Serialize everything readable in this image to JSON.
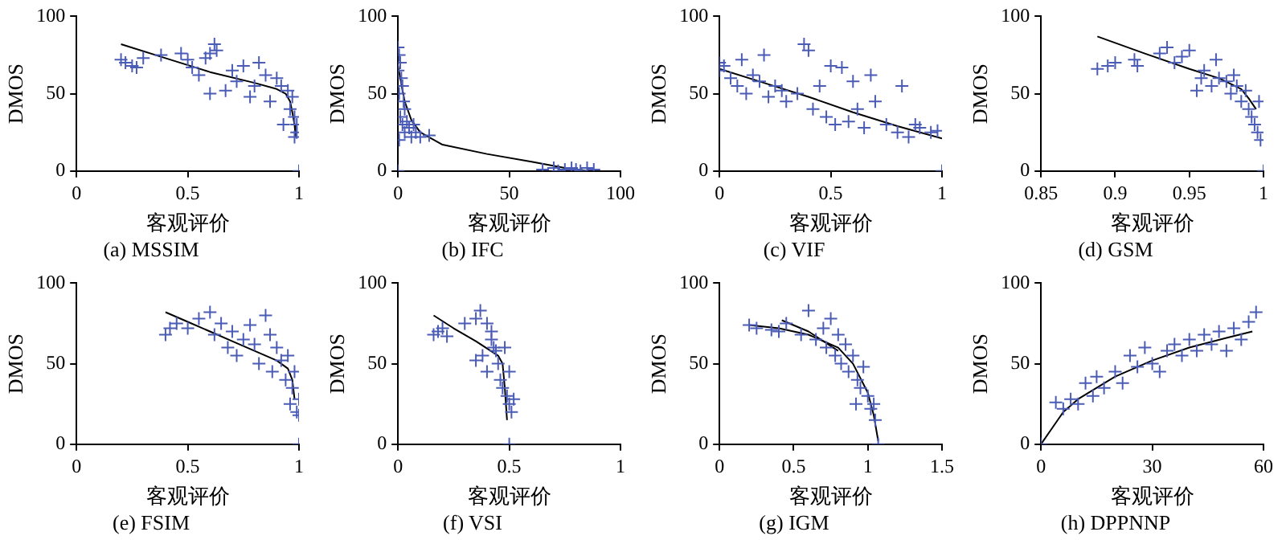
{
  "chart_data": [
    {
      "type": "scatter",
      "title": "(a) MSSIM",
      "xlabel": "客观评价",
      "ylabel": "DMOS",
      "xlim": [
        0,
        1
      ],
      "xticks": [
        0,
        0.5,
        1
      ],
      "ylim": [
        0,
        100
      ],
      "yticks": [
        0,
        50,
        100
      ],
      "marker": "cross",
      "series": [
        {
          "color": "#4a5cb5",
          "x": [
            0.2,
            0.22,
            0.25,
            0.27,
            0.3,
            0.38,
            0.47,
            0.5,
            0.52,
            0.55,
            0.58,
            0.6,
            0.62,
            0.63,
            0.6,
            0.67,
            0.7,
            0.72,
            0.75,
            0.78,
            0.8,
            0.82,
            0.85,
            0.87,
            0.9,
            0.92,
            0.93,
            0.95,
            0.96,
            0.97,
            0.98,
            0.99,
            0.99,
            0.98,
            1
          ],
          "values": [
            72,
            70,
            68,
            67,
            73,
            75,
            76,
            72,
            67,
            62,
            73,
            76,
            82,
            78,
            50,
            52,
            65,
            58,
            68,
            48,
            55,
            70,
            62,
            45,
            60,
            55,
            30,
            52,
            40,
            48,
            35,
            25,
            30,
            22,
            0
          ]
        },
        {
          "type": "line",
          "color": "#000000",
          "marker": "none",
          "x": [
            0.2,
            0.4,
            0.6,
            0.8,
            0.9,
            0.94,
            0.96,
            0.97,
            0.98,
            0.985
          ],
          "values": [
            82,
            73,
            64,
            57,
            53,
            50,
            45,
            38,
            30,
            22
          ]
        }
      ]
    },
    {
      "type": "scatter",
      "title": "(b) IFC",
      "xlabel": "客观评价",
      "ylabel": "DMOS",
      "xlim": [
        0,
        100
      ],
      "xticks": [
        0,
        50,
        100
      ],
      "ylim": [
        0,
        100
      ],
      "yticks": [
        0,
        50,
        100
      ],
      "marker": "cross",
      "series": [
        {
          "color": "#4a5cb5",
          "x": [
            0,
            0.5,
            1,
            0,
            1.5,
            2,
            0.5,
            2.5,
            3,
            1,
            4,
            5,
            3,
            6,
            0.5,
            8,
            10,
            14,
            2,
            7,
            0,
            65,
            70,
            75,
            78,
            80,
            85,
            88,
            72,
            82
          ],
          "values": [
            80,
            75,
            70,
            65,
            60,
            55,
            50,
            45,
            40,
            35,
            32,
            28,
            25,
            22,
            20,
            25,
            22,
            23,
            30,
            30,
            0,
            1,
            2,
            1,
            2,
            1,
            2,
            1,
            0,
            0
          ]
        },
        {
          "type": "line",
          "color": "#000000",
          "marker": "none",
          "x": [
            0,
            1,
            3,
            6,
            10,
            20,
            40,
            60,
            75,
            85
          ],
          "values": [
            68,
            60,
            45,
            33,
            25,
            17,
            11,
            6,
            2,
            0
          ]
        }
      ]
    },
    {
      "type": "scatter",
      "title": "(c) VIF",
      "xlabel": "客观评价",
      "ylabel": "DMOS",
      "xlim": [
        0,
        1
      ],
      "xticks": [
        0,
        0.5,
        1
      ],
      "ylim": [
        0,
        100
      ],
      "yticks": [
        0,
        50,
        100
      ],
      "marker": "cross",
      "series": [
        {
          "color": "#4a5cb5",
          "x": [
            0,
            0,
            0.02,
            0.05,
            0.08,
            0.1,
            0.12,
            0.15,
            0.18,
            0.2,
            0.22,
            0.25,
            0.28,
            0.3,
            0.35,
            0.38,
            0.4,
            0.42,
            0.45,
            0.48,
            0.5,
            0.52,
            0.55,
            0.58,
            0.6,
            0.62,
            0.65,
            0.68,
            0.7,
            0.75,
            0.8,
            0.82,
            0.85,
            0.88,
            0.9,
            0.95,
            0.98,
            1
          ],
          "values": [
            70,
            65,
            68,
            60,
            55,
            72,
            50,
            62,
            58,
            75,
            48,
            55,
            52,
            45,
            50,
            82,
            78,
            40,
            55,
            35,
            68,
            30,
            67,
            32,
            58,
            40,
            28,
            62,
            45,
            30,
            25,
            55,
            22,
            30,
            28,
            25,
            26,
            0
          ]
        },
        {
          "type": "line",
          "color": "#000000",
          "marker": "none",
          "x": [
            0,
            0.2,
            0.4,
            0.6,
            0.8,
            1
          ],
          "values": [
            66,
            57,
            48,
            38,
            29,
            21
          ]
        }
      ]
    },
    {
      "type": "scatter",
      "title": "(d) GSM",
      "xlabel": "客观评价",
      "ylabel": "DMOS",
      "xlim": [
        0.85,
        1
      ],
      "xticks": [
        0.85,
        0.9,
        0.95,
        1
      ],
      "ylim": [
        0,
        100
      ],
      "yticks": [
        0,
        50,
        100
      ],
      "marker": "cross",
      "series": [
        {
          "color": "#4a5cb5",
          "x": [
            0.888,
            0.895,
            0.9,
            0.913,
            0.915,
            0.93,
            0.935,
            0.94,
            0.945,
            0.95,
            0.955,
            0.958,
            0.96,
            0.965,
            0.968,
            0.97,
            0.975,
            0.978,
            0.98,
            0.982,
            0.985,
            0.988,
            0.99,
            0.992,
            0.994,
            0.996,
            0.998,
            0.997,
            1
          ],
          "values": [
            66,
            68,
            70,
            72,
            68,
            76,
            80,
            70,
            74,
            78,
            52,
            60,
            65,
            55,
            72,
            60,
            58,
            50,
            62,
            55,
            45,
            52,
            40,
            35,
            30,
            25,
            20,
            45,
            0
          ]
        },
        {
          "type": "line",
          "color": "#000000",
          "marker": "none",
          "x": [
            0.888,
            0.92,
            0.95,
            0.97,
            0.985,
            0.99,
            0.995
          ],
          "values": [
            87,
            76,
            66,
            60,
            53,
            47,
            40
          ]
        }
      ]
    },
    {
      "type": "scatter",
      "title": "(e) FSIM",
      "xlabel": "客观评价",
      "ylabel": "DMOS",
      "xlim": [
        0,
        1
      ],
      "xticks": [
        0,
        0.5,
        1
      ],
      "ylim": [
        0,
        100
      ],
      "yticks": [
        0,
        50,
        100
      ],
      "marker": "cross",
      "series": [
        {
          "color": "#4a5cb5",
          "x": [
            0.4,
            0.42,
            0.45,
            0.5,
            0.55,
            0.6,
            0.62,
            0.65,
            0.68,
            0.7,
            0.72,
            0.75,
            0.78,
            0.8,
            0.82,
            0.85,
            0.87,
            0.88,
            0.9,
            0.92,
            0.94,
            0.95,
            0.96,
            0.97,
            0.98,
            0.99,
            1,
            1,
            1
          ],
          "values": [
            68,
            72,
            75,
            72,
            78,
            82,
            68,
            75,
            60,
            70,
            55,
            65,
            74,
            62,
            50,
            80,
            68,
            45,
            60,
            52,
            40,
            55,
            25,
            35,
            45,
            20,
            28,
            18,
            0
          ]
        },
        {
          "type": "line",
          "color": "#000000",
          "marker": "none",
          "x": [
            0.4,
            0.5,
            0.6,
            0.7,
            0.8,
            0.9,
            0.95,
            0.97,
            0.98
          ],
          "values": [
            82,
            76,
            70,
            64,
            58,
            52,
            47,
            40,
            28
          ]
        }
      ]
    },
    {
      "type": "scatter",
      "title": "(f) VSI",
      "xlabel": "客观评价",
      "ylabel": "DMOS",
      "xlim": [
        0,
        1
      ],
      "xticks": [
        0,
        0.5,
        1
      ],
      "ylim": [
        0,
        100
      ],
      "yticks": [
        0,
        50,
        100
      ],
      "marker": "cross",
      "series": [
        {
          "color": "#4a5cb5",
          "x": [
            0.16,
            0.18,
            0.2,
            0.22,
            0.3,
            0.35,
            0.37,
            0.4,
            0.42,
            0.43,
            0.35,
            0.38,
            0.4,
            0.42,
            0.44,
            0.45,
            0.46,
            0.47,
            0.48,
            0.49,
            0.5,
            0.51,
            0.5,
            0.52,
            0.5
          ],
          "values": [
            68,
            70,
            72,
            67,
            75,
            78,
            83,
            75,
            70,
            60,
            52,
            55,
            45,
            65,
            58,
            50,
            40,
            35,
            60,
            30,
            25,
            20,
            45,
            28,
            0
          ]
        },
        {
          "type": "line",
          "color": "#000000",
          "marker": "none",
          "x": [
            0.16,
            0.25,
            0.35,
            0.45,
            0.47,
            0.48,
            0.49
          ],
          "values": [
            80,
            72,
            64,
            55,
            50,
            35,
            15
          ]
        }
      ]
    },
    {
      "type": "scatter",
      "title": "(g) IGM",
      "xlabel": "客观评价",
      "ylabel": "DMOS",
      "xlim": [
        0,
        1.5
      ],
      "xticks": [
        0,
        0.5,
        1,
        1.5
      ],
      "ylim": [
        0,
        100
      ],
      "yticks": [
        0,
        50,
        100
      ],
      "marker": "cross",
      "series": [
        {
          "color": "#4a5cb5",
          "x": [
            0.2,
            0.25,
            0.35,
            0.4,
            0.45,
            0.6,
            0.55,
            0.65,
            0.7,
            0.72,
            0.75,
            0.78,
            0.8,
            0.82,
            0.85,
            0.87,
            0.9,
            0.92,
            0.93,
            0.95,
            0.97,
            1,
            1.02,
            1.04,
            1.05,
            1.07
          ],
          "values": [
            74,
            72,
            71,
            70,
            75,
            83,
            68,
            65,
            72,
            60,
            78,
            55,
            68,
            50,
            62,
            45,
            55,
            25,
            40,
            35,
            48,
            30,
            22,
            25,
            15,
            0
          ]
        },
        {
          "type": "line",
          "color": "#000000",
          "marker": "none",
          "x": [
            0.2,
            0.4,
            0.6,
            0.8,
            0.9,
            1,
            1.04,
            1.07
          ],
          "values": [
            74,
            72,
            68,
            60,
            50,
            32,
            18,
            2
          ]
        },
        {
          "type": "line",
          "color": "#000000",
          "marker": "none",
          "x": [
            0.42,
            0.6,
            0.8
          ],
          "values": [
            77,
            70,
            58
          ]
        }
      ]
    },
    {
      "type": "scatter",
      "title": "(h) DPPNNP",
      "xlabel": "客观评价",
      "ylabel": "DMOS",
      "xlim": [
        0,
        60
      ],
      "xticks": [
        0,
        30,
        60
      ],
      "ylim": [
        0,
        100
      ],
      "yticks": [
        0,
        50,
        100
      ],
      "marker": "cross",
      "series": [
        {
          "color": "#4a5cb5",
          "x": [
            4,
            6,
            8,
            10,
            12,
            14,
            15,
            17,
            20,
            22,
            24,
            26,
            28,
            30,
            32,
            34,
            36,
            38,
            40,
            42,
            44,
            46,
            48,
            50,
            52,
            54,
            56,
            58,
            0
          ],
          "values": [
            26,
            22,
            28,
            25,
            38,
            30,
            42,
            35,
            45,
            38,
            55,
            48,
            60,
            50,
            45,
            58,
            62,
            55,
            65,
            58,
            68,
            62,
            70,
            58,
            72,
            65,
            76,
            82,
            0
          ]
        },
        {
          "type": "line",
          "color": "#000000",
          "marker": "none",
          "x": [
            0,
            3,
            6,
            10,
            20,
            30,
            40,
            50,
            57
          ],
          "values": [
            0,
            10,
            20,
            28,
            42,
            52,
            60,
            66,
            70
          ]
        }
      ]
    }
  ]
}
